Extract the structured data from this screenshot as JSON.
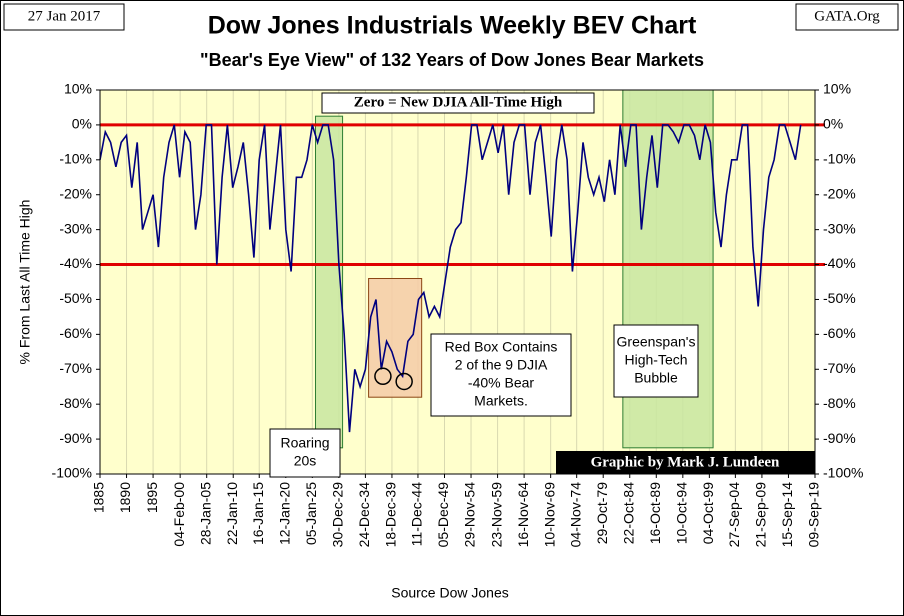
{
  "chart_data": {
    "type": "line",
    "title": "Dow Jones Industrials Weekly BEV Chart",
    "subtitle": "\"Bear's Eye View\" of 132 Years of Dow Jones Bear Markets",
    "date_note": "27 Jan 2017",
    "site": "GATA.Org",
    "source": "Source Dow Jones",
    "ylabel": "% From Last All Time High",
    "credit": "Graphic by Mark J. Lundeen",
    "color": "#00007f",
    "background": "#ffffcc",
    "grid": true,
    "x": [
      1885,
      1886,
      1887,
      1888,
      1889,
      1890,
      1891,
      1892,
      1893,
      1894,
      1895,
      1896,
      1897,
      1898,
      1899,
      1900,
      1901,
      1902,
      1903,
      1904,
      1905,
      1906,
      1907,
      1908,
      1909,
      1910,
      1911,
      1912,
      1913,
      1914,
      1915,
      1916,
      1917,
      1918,
      1919,
      1920,
      1921,
      1922,
      1923,
      1924,
      1925,
      1926,
      1927,
      1928,
      1929,
      1930,
      1931,
      1932,
      1933,
      1934,
      1935,
      1936,
      1937,
      1938,
      1939,
      1940,
      1941,
      1942,
      1943,
      1944,
      1945,
      1946,
      1947,
      1948,
      1949,
      1950,
      1951,
      1952,
      1953,
      1954,
      1955,
      1956,
      1957,
      1958,
      1959,
      1960,
      1961,
      1962,
      1963,
      1964,
      1965,
      1966,
      1967,
      1968,
      1969,
      1970,
      1971,
      1972,
      1973,
      1974,
      1975,
      1976,
      1977,
      1978,
      1979,
      1980,
      1981,
      1982,
      1983,
      1984,
      1985,
      1986,
      1987,
      1988,
      1989,
      1990,
      1991,
      1992,
      1993,
      1994,
      1995,
      1996,
      1997,
      1998,
      1999,
      2000,
      2001,
      2002,
      2003,
      2004,
      2005,
      2006,
      2007,
      2008,
      2009,
      2010,
      2011,
      2012,
      2013,
      2014,
      2015,
      2016,
      2017
    ],
    "values": [
      -10,
      -2,
      -5,
      -12,
      -5,
      -3,
      -18,
      -5,
      -30,
      -25,
      -20,
      -35,
      -15,
      -5,
      0,
      -15,
      -2,
      -5,
      -30,
      -20,
      0,
      0,
      -40,
      -15,
      0,
      -18,
      -12,
      -5,
      -20,
      -38,
      -10,
      0,
      -30,
      -15,
      0,
      -30,
      -42,
      -15,
      -15,
      -10,
      0,
      -5,
      0,
      0,
      -10,
      -40,
      -60,
      -88,
      -70,
      -75,
      -70,
      -55,
      -50,
      -70,
      -62,
      -65,
      -70,
      -72,
      -62,
      -60,
      -50,
      -48,
      -55,
      -52,
      -55,
      -45,
      -35,
      -30,
      -28,
      -15,
      0,
      0,
      -10,
      -5,
      0,
      -8,
      0,
      -20,
      -5,
      0,
      0,
      -20,
      -5,
      0,
      -15,
      -32,
      -10,
      0,
      -10,
      -42,
      -25,
      -5,
      -15,
      -20,
      -15,
      -22,
      -10,
      -20,
      0,
      -12,
      0,
      0,
      -30,
      -15,
      -3,
      -18,
      0,
      0,
      -2,
      -5,
      0,
      0,
      -3,
      -10,
      0,
      -5,
      -25,
      -35,
      -20,
      -10,
      -10,
      0,
      0,
      -35,
      -52,
      -30,
      -15,
      -10,
      0,
      0,
      -5,
      -10,
      0
    ],
    "xlim": [
      1885,
      2019.7
    ],
    "xticks": [
      1885,
      1890,
      1895,
      {
        "value": 1900.1,
        "label": "04-Feb-00"
      },
      {
        "value": 1905.1,
        "label": "28-Jan-05"
      },
      {
        "value": 1910.1,
        "label": "22-Jan-10"
      },
      {
        "value": 1915.0,
        "label": "16-Jan-15"
      },
      {
        "value": 1920.0,
        "label": "12-Jan-20"
      },
      {
        "value": 1925.0,
        "label": "05-Jan-25"
      },
      {
        "value": 1930.0,
        "label": "30-Dec-29"
      },
      {
        "value": 1935.0,
        "label": "24-Dec-34"
      },
      {
        "value": 1940.0,
        "label": "18-Dec-39"
      },
      {
        "value": 1944.9,
        "label": "11-Dec-44"
      },
      {
        "value": 1949.9,
        "label": "05-Dec-49"
      },
      {
        "value": 1954.9,
        "label": "29-Nov-54"
      },
      {
        "value": 1959.9,
        "label": "23-Nov-59"
      },
      {
        "value": 1964.9,
        "label": "16-Nov-64"
      },
      {
        "value": 1969.9,
        "label": "10-Nov-69"
      },
      {
        "value": 1974.8,
        "label": "04-Nov-74"
      },
      {
        "value": 1979.8,
        "label": "29-Oct-79"
      },
      {
        "value": 1984.8,
        "label": "22-Oct-84"
      },
      {
        "value": 1989.8,
        "label": "16-Oct-89"
      },
      {
        "value": 1994.8,
        "label": "10-Oct-94"
      },
      {
        "value": 1999.8,
        "label": "04-Oct-99"
      },
      {
        "value": 2004.7,
        "label": "27-Sep-04"
      },
      {
        "value": 2009.7,
        "label": "21-Sep-09"
      },
      {
        "value": 2014.7,
        "label": "15-Sep-14"
      },
      {
        "value": 2019.7,
        "label": "09-Sep-19"
      }
    ],
    "ylim": [
      -100,
      10
    ],
    "yticks": [
      {
        "value": 10,
        "label": "10%"
      },
      {
        "value": 0,
        "label": "0%"
      },
      {
        "value": -10,
        "label": "-10%"
      },
      {
        "value": -20,
        "label": "-20%"
      },
      {
        "value": -30,
        "label": "-30%"
      },
      {
        "value": -40,
        "label": "-40%"
      },
      {
        "value": -50,
        "label": "-50%"
      },
      {
        "value": -60,
        "label": "-60%"
      },
      {
        "value": -70,
        "label": "-70%"
      },
      {
        "value": -80,
        "label": "-80%"
      },
      {
        "value": -90,
        "label": "-90%"
      },
      {
        "value": -100,
        "label": "-100%"
      }
    ],
    "reference_lines": [
      0,
      -40
    ],
    "reference_color": "#e00000",
    "highlights": [
      {
        "x": [
          1925.6,
          1930.7
        ],
        "y": [
          2.5,
          -92.5
        ],
        "color": "#c8e6a0"
      },
      {
        "x": [
          1983.5,
          2000.5
        ],
        "y": [
          10,
          -92.5
        ],
        "color": "#c8e6a0"
      },
      {
        "x": [
          1935.6,
          1945.6
        ],
        "y": [
          -44,
          -78
        ],
        "color": "#f5cba7"
      }
    ],
    "markers": [
      {
        "x": 1938.3,
        "y": -72
      },
      {
        "x": 1942.3,
        "y": -73.5
      }
    ],
    "annotations": [
      {
        "lines": [
          "Zero = New DJIA All-Time High"
        ]
      },
      {
        "lines": [
          "Roaring",
          "20s"
        ]
      },
      {
        "lines": [
          "Red Box Contains",
          "2 of the 9 DJIA",
          "-40% Bear",
          "Markets."
        ]
      },
      {
        "lines": [
          "Greenspan's",
          "High-Tech",
          "Bubble"
        ]
      }
    ]
  }
}
